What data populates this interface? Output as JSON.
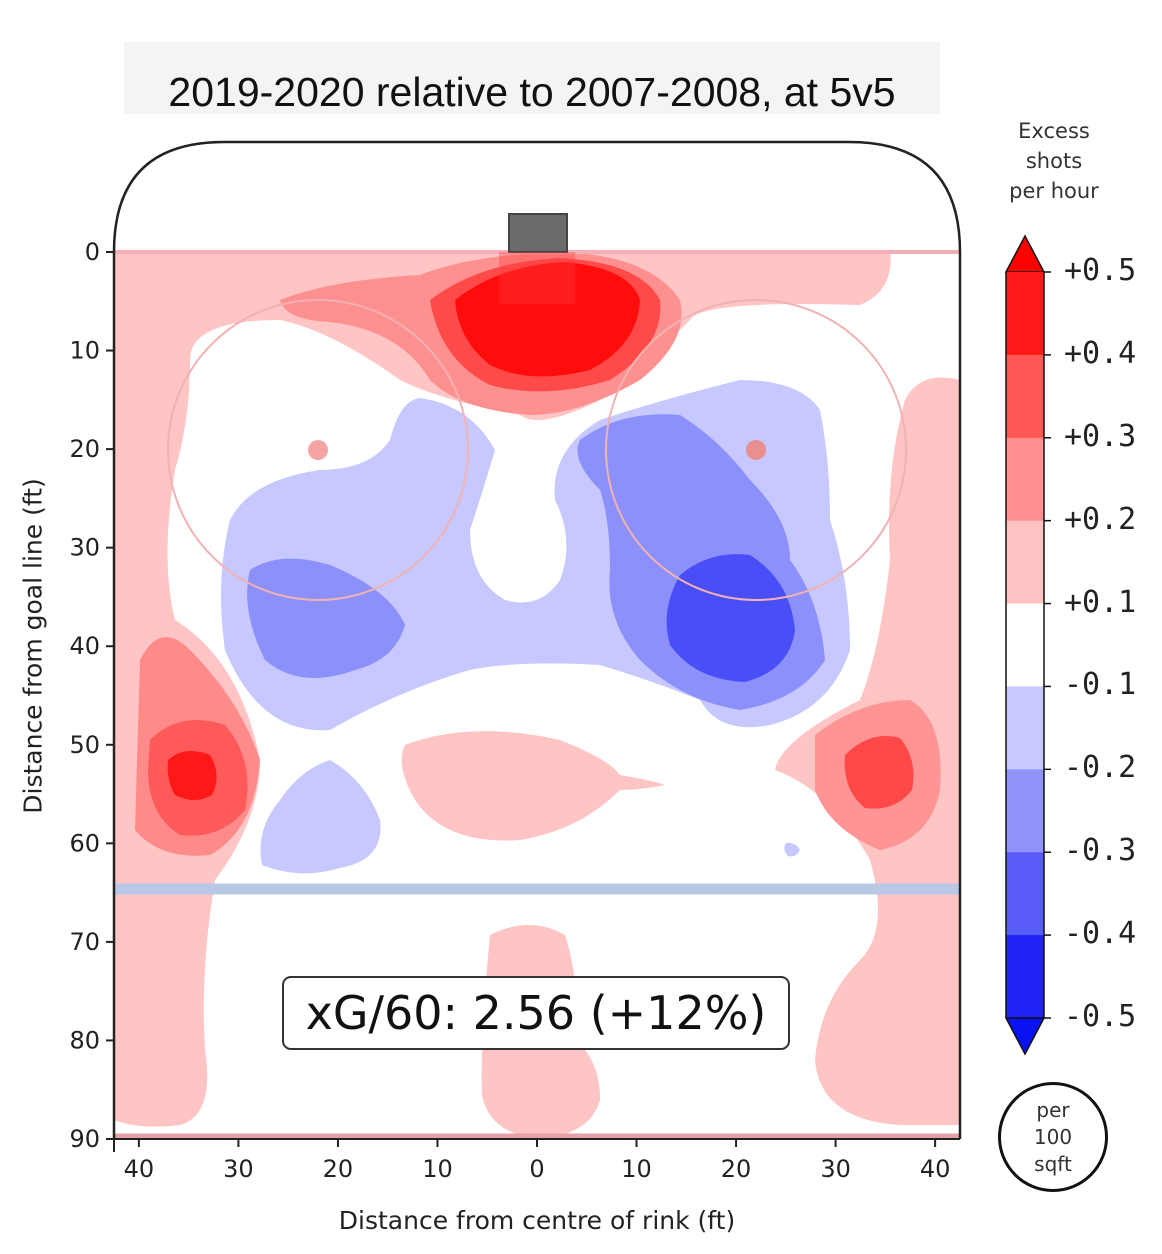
{
  "title": "2019-2020 relative to 2007-2008, at 5v5",
  "chart_data": {
    "type": "heatmap",
    "title": "2019-2020 relative to 2007-2008, at 5v5",
    "xlabel": "Distance from centre of rink (ft)",
    "ylabel": "Distance from goal line (ft)",
    "x_ticks": [
      "40",
      "30",
      "20",
      "10",
      "0",
      "10",
      "20",
      "30",
      "40"
    ],
    "y_ticks": [
      "0",
      "10",
      "20",
      "30",
      "40",
      "50",
      "60",
      "70",
      "80",
      "90"
    ],
    "xlim": [
      -42.5,
      42.5
    ],
    "ylim": [
      90,
      0
    ],
    "colorbar": {
      "label": "Excess shots per hour",
      "levels": [
        "+0.5",
        "+0.4",
        "+0.3",
        "+0.2",
        "+0.1",
        "-0.1",
        "-0.2",
        "-0.3",
        "-0.4",
        "-0.5"
      ],
      "band_colors": [
        "#ff1a1a",
        "#ff5555",
        "#ff8e8e",
        "#ffc2c2",
        "#ffffff",
        "#c6c8ff",
        "#9094fa",
        "#5a5cf7",
        "#1f24f5"
      ],
      "unit": "per 100 sqft"
    },
    "annotation": "xG/60: 2.56 (+12%)"
  },
  "colorbar_title_lines": [
    "Excess",
    "shots",
    "per hour"
  ],
  "unit_lines": [
    "per",
    "100",
    "sqft"
  ],
  "colors": {
    "red_strong": "#ff0d0d",
    "red_mid": "#ff5a5a",
    "red_light": "#ffc4c4",
    "blue_light": "#c6c8ff",
    "blue_mid": "#8c90fa",
    "blue_strong": "#4a4ef6"
  }
}
